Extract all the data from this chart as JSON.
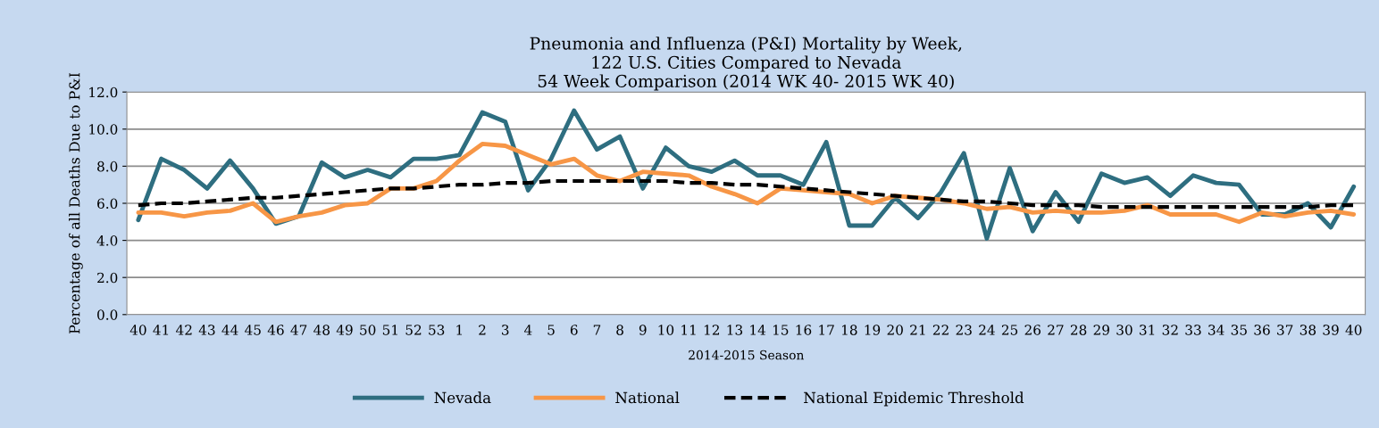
{
  "chart_data": {
    "type": "line",
    "title": "Pneumonia and Influenza (P&I) Mortality by Week,\n122 U.S. Cities Compared to Nevada\n54 Week Comparison (2014 WK 40- 2015 WK 40)",
    "xlabel": "2014-2015 Season",
    "ylabel": "Percentage of all Deaths Due to P&I",
    "categories": [
      "40",
      "41",
      "42",
      "43",
      "44",
      "45",
      "46",
      "47",
      "48",
      "49",
      "50",
      "51",
      "52",
      "53",
      "1",
      "2",
      "3",
      "4",
      "5",
      "6",
      "7",
      "8",
      "9",
      "10",
      "11",
      "12",
      "13",
      "14",
      "15",
      "16",
      "17",
      "18",
      "19",
      "20",
      "21",
      "22",
      "23",
      "24",
      "25",
      "26",
      "27",
      "28",
      "29",
      "30",
      "31",
      "32",
      "33",
      "34",
      "35",
      "36",
      "37",
      "38",
      "39",
      "40"
    ],
    "series": [
      {
        "name": "Nevada",
        "color": "#2e6e80",
        "line_style": "solid",
        "values": [
          5.1,
          8.4,
          7.8,
          6.8,
          8.3,
          6.8,
          4.9,
          5.3,
          8.2,
          7.4,
          7.8,
          7.4,
          8.4,
          8.4,
          8.6,
          10.9,
          10.4,
          6.7,
          8.4,
          11.0,
          8.9,
          9.6,
          6.8,
          9.0,
          8.0,
          7.7,
          8.3,
          7.5,
          7.5,
          7.0,
          9.3,
          4.8,
          4.8,
          6.3,
          5.2,
          6.6,
          8.7,
          4.1,
          7.9,
          4.5,
          6.6,
          5.0,
          7.6,
          7.1,
          7.4,
          6.4,
          7.5,
          7.1,
          7.0,
          5.4,
          5.4,
          6.0,
          4.7,
          6.9
        ]
      },
      {
        "name": "National",
        "color": "#f79646",
        "line_style": "solid",
        "values": [
          5.5,
          5.5,
          5.3,
          5.5,
          5.6,
          6.0,
          5.0,
          5.3,
          5.5,
          5.9,
          6.0,
          6.8,
          6.8,
          7.2,
          8.3,
          9.2,
          9.1,
          8.6,
          8.1,
          8.4,
          7.5,
          7.2,
          7.7,
          7.6,
          7.5,
          6.9,
          6.5,
          6.0,
          6.8,
          6.7,
          6.6,
          6.5,
          6.0,
          6.4,
          6.3,
          6.2,
          6.0,
          5.7,
          5.8,
          5.5,
          5.6,
          5.5,
          5.5,
          5.6,
          5.9,
          5.4,
          5.4,
          5.4,
          5.0,
          5.5,
          5.3,
          5.5,
          5.6,
          5.4
        ]
      },
      {
        "name": "National Epidemic Threshold",
        "color": "#000000",
        "line_style": "dashed",
        "values": [
          5.9,
          6.0,
          6.0,
          6.1,
          6.2,
          6.3,
          6.3,
          6.4,
          6.5,
          6.6,
          6.7,
          6.8,
          6.8,
          6.9,
          7.0,
          7.0,
          7.1,
          7.1,
          7.2,
          7.2,
          7.2,
          7.2,
          7.2,
          7.2,
          7.1,
          7.1,
          7.0,
          7.0,
          6.9,
          6.8,
          6.7,
          6.6,
          6.5,
          6.4,
          6.3,
          6.2,
          6.1,
          6.1,
          6.0,
          5.9,
          5.9,
          5.9,
          5.8,
          5.8,
          5.8,
          5.8,
          5.8,
          5.8,
          5.8,
          5.8,
          5.8,
          5.8,
          5.9,
          5.9
        ]
      }
    ],
    "ylim": [
      0,
      12
    ],
    "yticks": [
      {
        "value": 0,
        "label": "0.0"
      },
      {
        "value": 2,
        "label": "2.0"
      },
      {
        "value": 4,
        "label": "4.0"
      },
      {
        "value": 6,
        "label": "6.0"
      },
      {
        "value": 8,
        "label": "8.0"
      },
      {
        "value": 10,
        "label": "10.0"
      },
      {
        "value": 12,
        "label": "12.0"
      }
    ],
    "grid": "y",
    "legend": "bottom"
  }
}
